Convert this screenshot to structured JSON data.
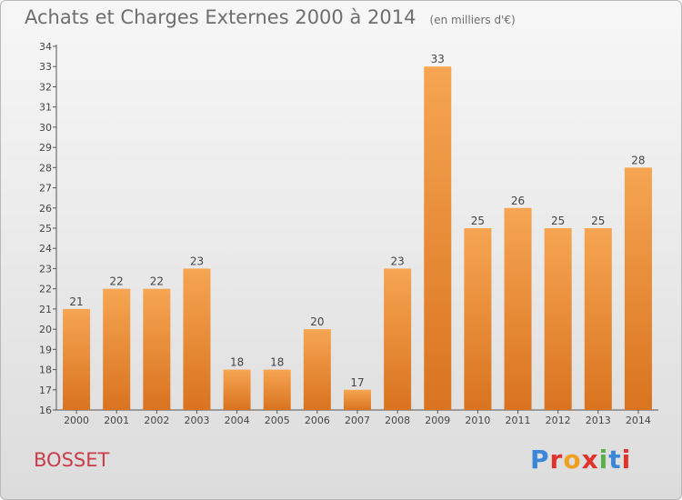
{
  "header": {
    "title": "Achats et Charges Externes 2000 à 2014",
    "subtitle": "(en milliers d'€)"
  },
  "footer": {
    "commune": "BOSSET",
    "brand": "Proxiti",
    "brand_letter_colors": [
      "#3a87d9",
      "#e0332b",
      "#f0a020",
      "#e0332b",
      "#59b04b",
      "#3a87d9",
      "#e0332b"
    ]
  },
  "colors": {
    "bar_top": "#f6a552",
    "bar_bottom": "#d9731f",
    "axis": "#555555",
    "title": "#6e6e6e",
    "commune": "#c83c4b"
  },
  "chart_data": {
    "type": "bar",
    "title": "Achats et Charges Externes 2000 à 2014",
    "subtitle": "(en milliers d'€)",
    "categories": [
      "2000",
      "2001",
      "2002",
      "2003",
      "2004",
      "2005",
      "2006",
      "2007",
      "2008",
      "2009",
      "2010",
      "2011",
      "2012",
      "2013",
      "2014"
    ],
    "values": [
      21,
      22,
      22,
      23,
      18,
      18,
      20,
      17,
      23,
      33,
      25,
      26,
      25,
      25,
      28
    ],
    "ylim": [
      16,
      34
    ],
    "yticks": [
      16,
      17,
      18,
      19,
      20,
      21,
      22,
      23,
      24,
      25,
      26,
      27,
      28,
      29,
      30,
      31,
      32,
      33,
      34
    ],
    "xlabel": "",
    "ylabel": "",
    "grid": false,
    "data_labels": true
  }
}
